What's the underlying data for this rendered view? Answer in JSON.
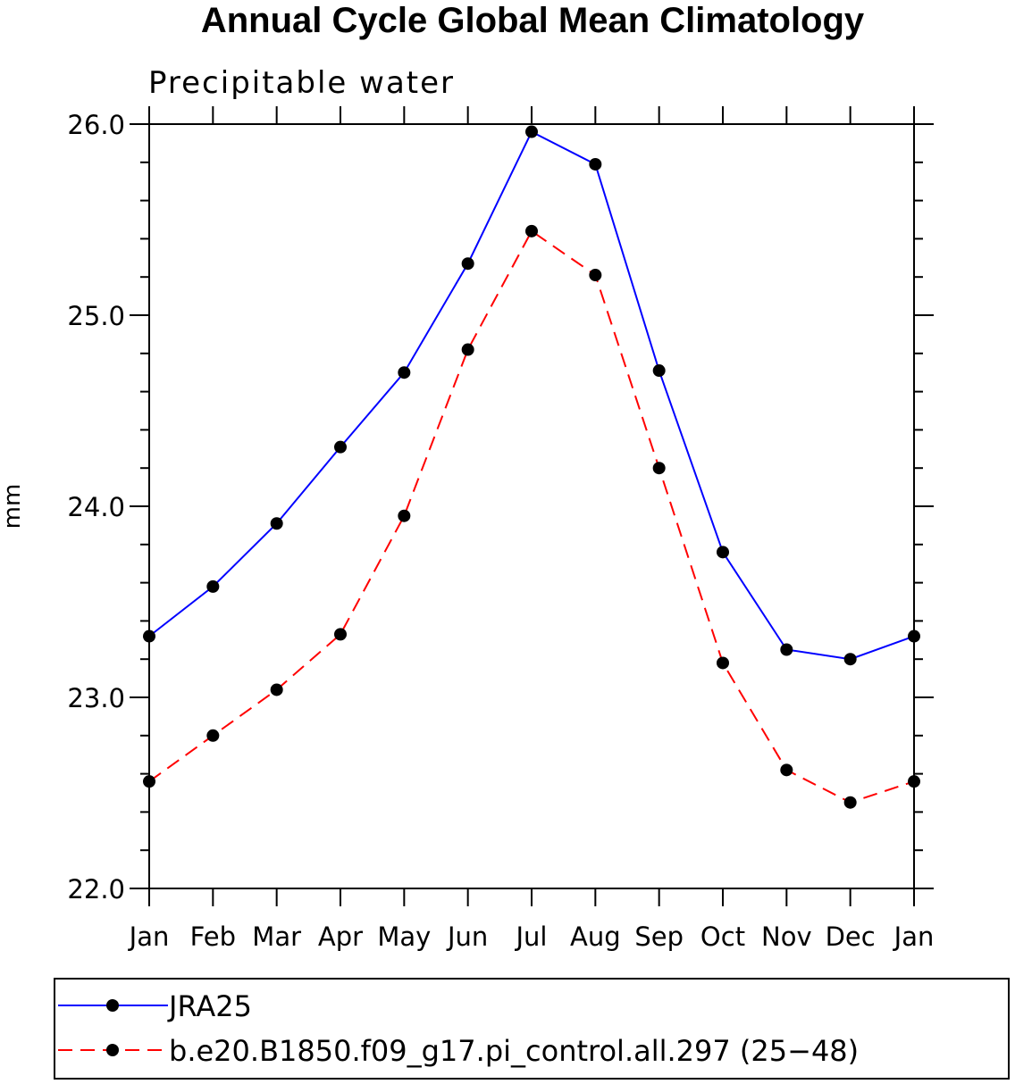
{
  "chart_data": {
    "type": "line",
    "title": "Annual Cycle Global Mean Climatology",
    "subtitle": "Precipitable water",
    "xlabel": "",
    "ylabel": "mm",
    "categories": [
      "Jan",
      "Feb",
      "Mar",
      "Apr",
      "May",
      "Jun",
      "Jul",
      "Aug",
      "Sep",
      "Oct",
      "Nov",
      "Dec",
      "Jan"
    ],
    "ylim": [
      22.0,
      26.0
    ],
    "yticks": [
      22.0,
      23.0,
      24.0,
      25.0,
      26.0
    ],
    "ytick_labels": [
      "22.0",
      "23.0",
      "24.0",
      "25.0",
      "26.0"
    ],
    "y_minor_step": 0.2,
    "grid": false,
    "legend_position": "bottom",
    "series": [
      {
        "name": "JRA25",
        "color": "#0000ff",
        "dash": "solid",
        "values": [
          23.32,
          23.58,
          23.91,
          24.31,
          24.7,
          25.27,
          25.96,
          25.79,
          24.71,
          23.76,
          23.25,
          23.2,
          23.32
        ]
      },
      {
        "name": "b.e20.B1850.f09_g17.pi_control.all.297 (25−48)",
        "color": "#ff0000",
        "dash": "dashed",
        "values": [
          22.56,
          22.8,
          23.04,
          23.33,
          23.95,
          24.82,
          25.44,
          25.21,
          24.2,
          23.18,
          22.62,
          22.45,
          22.56
        ]
      }
    ]
  }
}
